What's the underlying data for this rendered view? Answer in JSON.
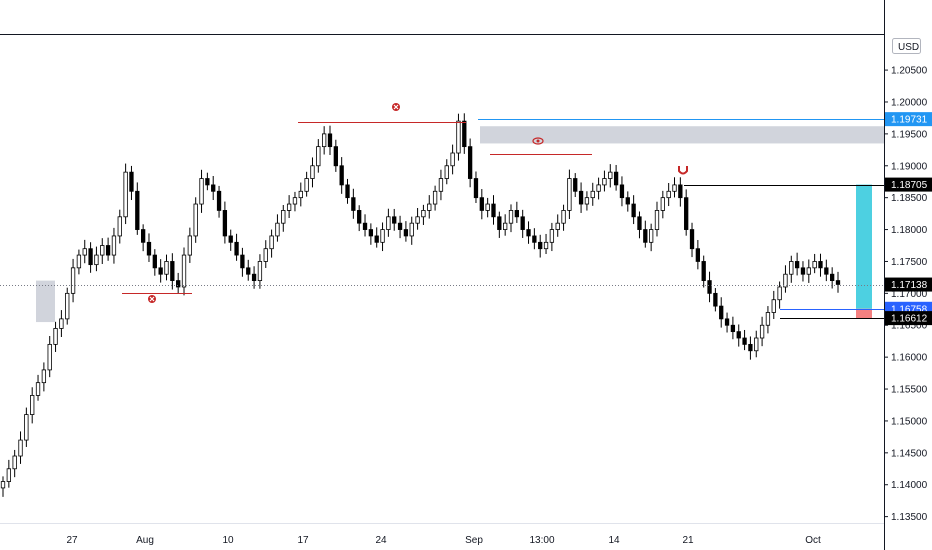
{
  "chart_data": {
    "type": "candlestick",
    "currency": "USD",
    "ylim": [
      1.134,
      1.2105
    ],
    "y_ticks": [
      "1.20500",
      "1.20000",
      "1.19500",
      "1.19000",
      "1.18500",
      "1.18000",
      "1.17500",
      "1.17000",
      "1.16500",
      "1.16000",
      "1.15500",
      "1.15000",
      "1.14500",
      "1.14000",
      "1.13500"
    ],
    "x_ticks": [
      "27",
      "Aug",
      "10",
      "17",
      "24",
      "Sep",
      "13:00",
      "14",
      "21",
      "Oct"
    ],
    "price_labels": [
      {
        "text": "1.19731",
        "value": 1.19731,
        "bg": "#2196f3",
        "fg": "#ffffff"
      },
      {
        "text": "1.18705",
        "value": 1.18705,
        "bg": "#000000",
        "fg": "#ffffff"
      },
      {
        "text": "1.17138",
        "value": 1.17138,
        "bg": "#000000",
        "fg": "#ffffff"
      },
      {
        "text": "1.16758",
        "value": 1.16758,
        "bg": "#2962ff",
        "fg": "#ffffff"
      },
      {
        "text": "1.16612",
        "value": 1.16612,
        "bg": "#000000",
        "fg": "#ffffff"
      }
    ],
    "current_price": 1.17138,
    "series": [
      {
        "name": "",
        "values": [
          1.1405,
          1.1425,
          1.1445,
          1.147,
          1.151,
          1.154,
          1.156,
          1.158,
          1.162,
          1.1645,
          1.166,
          1.17,
          1.174,
          1.176,
          1.177,
          1.1745,
          1.176,
          1.1775,
          1.176,
          1.179,
          1.182,
          1.189,
          1.186,
          1.18,
          1.178,
          1.176,
          1.174,
          1.173,
          1.175,
          1.172,
          1.171,
          1.176,
          1.179,
          1.184,
          1.188,
          1.187,
          1.186,
          1.183,
          1.179,
          1.178,
          1.176,
          1.174,
          1.173,
          1.172,
          1.175,
          1.177,
          1.179,
          1.181,
          1.183,
          1.184,
          1.185,
          1.186,
          1.188,
          1.19,
          1.193,
          1.195,
          1.193,
          1.19,
          1.187,
          1.185,
          1.183,
          1.181,
          1.18,
          1.179,
          1.178,
          1.18,
          1.182,
          1.181,
          1.18,
          1.179,
          1.181,
          1.182,
          1.183,
          1.184,
          1.186,
          1.188,
          1.19,
          1.192,
          1.197,
          1.193,
          1.188,
          1.185,
          1.183,
          1.184,
          1.182,
          1.18,
          1.181,
          1.183,
          1.182,
          1.18,
          1.179,
          1.178,
          1.177,
          1.178,
          1.18,
          1.181,
          1.183,
          1.188,
          1.186,
          1.184,
          1.185,
          1.186,
          1.187,
          1.188,
          1.189,
          1.187,
          1.185,
          1.184,
          1.182,
          1.18,
          1.178,
          1.18,
          1.183,
          1.185,
          1.186,
          1.187,
          1.185,
          1.18,
          1.177,
          1.175,
          1.172,
          1.17,
          1.168,
          1.166,
          1.165,
          1.164,
          1.163,
          1.162,
          1.161,
          1.163,
          1.165,
          1.167,
          1.169,
          1.171,
          1.173,
          1.175,
          1.174,
          1.173,
          1.174,
          1.175,
          1.174,
          1.173,
          1.172,
          1.1714
        ]
      }
    ],
    "annotations": [
      {
        "type": "zone",
        "from": 1.1935,
        "to": 1.1962,
        "color": "#d1d4dc"
      },
      {
        "type": "zone",
        "from": 1.1655,
        "to": 1.172,
        "color": "#d1d4dc"
      },
      {
        "type": "zone",
        "from": 1.16758,
        "to": 1.18705,
        "color": "#4dd0e1"
      },
      {
        "type": "zone",
        "from": 1.16612,
        "to": 1.16758,
        "color": "#f48080"
      },
      {
        "type": "hline",
        "value": 1.1973,
        "color": "#2196f3"
      },
      {
        "type": "hline",
        "value": 1.1968,
        "color": "#c62828"
      },
      {
        "type": "hline",
        "value": 1.1918,
        "color": "#c62828"
      },
      {
        "type": "hline",
        "value": 1.17,
        "color": "#c62828"
      },
      {
        "type": "hline",
        "value": 1.18705,
        "color": "#000000"
      },
      {
        "type": "hline",
        "value": 1.16758,
        "color": "#2962ff"
      },
      {
        "type": "hline",
        "value": 1.16612,
        "color": "#000000"
      }
    ],
    "grid": false,
    "xlabel": "",
    "ylabel": ""
  }
}
